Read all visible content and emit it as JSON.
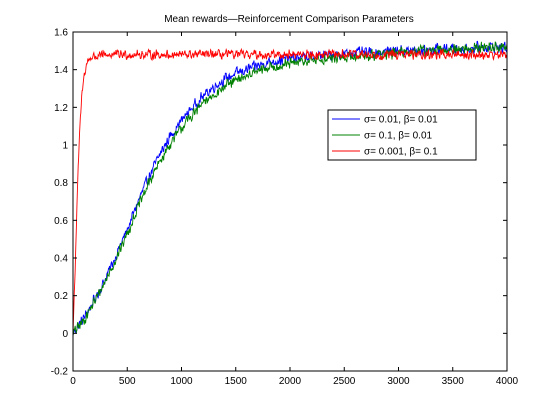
{
  "chart_data": {
    "type": "line",
    "title": "Mean rewards—Reinforcement Comparison Parameters",
    "xlabel": "",
    "ylabel": "",
    "xlim": [
      0,
      4000
    ],
    "ylim": [
      -0.2,
      1.6
    ],
    "x_ticks": [
      0,
      500,
      1000,
      1500,
      2000,
      2500,
      3000,
      3500,
      4000
    ],
    "x_tick_labels": [
      "0",
      "500",
      "1000",
      "1500",
      "2000",
      "2500",
      "3000",
      "3500",
      "4000"
    ],
    "y_ticks": [
      -0.2,
      0,
      0.2,
      0.4,
      0.6,
      0.8,
      1,
      1.2,
      1.4,
      1.6
    ],
    "y_tick_labels": [
      "-0.2",
      "0",
      "0.2",
      "0.4",
      "0.6",
      "0.8",
      "1",
      "1.2",
      "1.4",
      "1.6"
    ],
    "grid": false,
    "legend_position": "right",
    "series": [
      {
        "name": "σ= 0.01,  β= 0.01",
        "color": "#0000ff",
        "noise": 0.035,
        "x": [
          0,
          100,
          200,
          300,
          400,
          500,
          600,
          700,
          800,
          900,
          1000,
          1100,
          1200,
          1300,
          1400,
          1500,
          1600,
          1700,
          1800,
          1900,
          2000,
          2200,
          2400,
          2600,
          2800,
          3000,
          3200,
          3400,
          3600,
          3800,
          4000
        ],
        "y": [
          0.0,
          0.08,
          0.18,
          0.29,
          0.42,
          0.55,
          0.7,
          0.83,
          0.95,
          1.05,
          1.13,
          1.2,
          1.26,
          1.31,
          1.35,
          1.38,
          1.4,
          1.42,
          1.44,
          1.45,
          1.46,
          1.47,
          1.48,
          1.49,
          1.49,
          1.5,
          1.5,
          1.51,
          1.51,
          1.52,
          1.52
        ]
      },
      {
        "name": "σ= 0.1,  β= 0.01",
        "color": "#008000",
        "noise": 0.035,
        "x": [
          0,
          100,
          200,
          300,
          400,
          500,
          600,
          700,
          800,
          900,
          1000,
          1100,
          1200,
          1300,
          1400,
          1500,
          1600,
          1700,
          1800,
          1900,
          2000,
          2200,
          2400,
          2600,
          2800,
          3000,
          3200,
          3400,
          3600,
          3800,
          4000
        ],
        "y": [
          0.0,
          0.07,
          0.17,
          0.28,
          0.4,
          0.53,
          0.67,
          0.8,
          0.91,
          1.01,
          1.09,
          1.16,
          1.22,
          1.27,
          1.31,
          1.34,
          1.37,
          1.39,
          1.41,
          1.42,
          1.43,
          1.45,
          1.46,
          1.47,
          1.48,
          1.49,
          1.5,
          1.5,
          1.51,
          1.52,
          1.52
        ]
      },
      {
        "name": "σ= 0.001,  β= 0.1",
        "color": "#ff0000",
        "noise": 0.03,
        "x": [
          0,
          20,
          40,
          60,
          80,
          100,
          120,
          140,
          160,
          180,
          200,
          250,
          300,
          400,
          500,
          700,
          1000,
          1500,
          2000,
          2500,
          3000,
          3500,
          4000
        ],
        "y": [
          0.0,
          0.35,
          0.75,
          1.05,
          1.25,
          1.36,
          1.42,
          1.45,
          1.46,
          1.47,
          1.47,
          1.47,
          1.48,
          1.48,
          1.48,
          1.48,
          1.48,
          1.48,
          1.48,
          1.48,
          1.48,
          1.48,
          1.48
        ]
      }
    ]
  }
}
